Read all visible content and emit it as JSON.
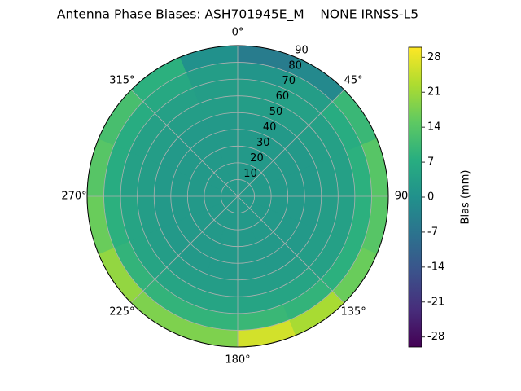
{
  "chart_data": {
    "type": "polar_heatmap",
    "title": "Antenna Phase Biases: ASH701945E_M    NONE IRNSS-L5",
    "colormap": "viridis",
    "colorbar_label": "Bias (mm)",
    "clim": [
      -30,
      30
    ],
    "cticks": [
      -28,
      -21,
      -14,
      -7,
      0,
      7,
      14,
      21,
      28
    ],
    "rlim": [
      0,
      90
    ],
    "rticks": [
      10,
      20,
      30,
      40,
      50,
      60,
      70,
      80,
      90
    ],
    "theta_ticks": [
      {
        "value": 0,
        "label": "0°"
      },
      {
        "value": 45,
        "label": "45°"
      },
      {
        "value": 90,
        "label": "90"
      },
      {
        "value": 135,
        "label": "135°"
      },
      {
        "value": 180,
        "label": "180°"
      },
      {
        "value": 225,
        "label": "225°"
      },
      {
        "value": 270,
        "label": "270°"
      },
      {
        "value": 315,
        "label": "315°"
      }
    ],
    "grid": true,
    "zenith_edges": [
      0,
      10,
      20,
      30,
      40,
      50,
      60,
      70,
      80,
      90
    ],
    "azimuth_edges": [
      0,
      22.5,
      45,
      67.5,
      90,
      112.5,
      135,
      157.5,
      180,
      202.5,
      225,
      247.5,
      270,
      292.5,
      315,
      337.5,
      360
    ],
    "values": [
      [
        2,
        2,
        2,
        2,
        2,
        2,
        2,
        2,
        2,
        2,
        2,
        2,
        2,
        2,
        2,
        2
      ],
      [
        2,
        2,
        2,
        2,
        2,
        2,
        2,
        2,
        2,
        2,
        2,
        2,
        2,
        2,
        2,
        2
      ],
      [
        2,
        2,
        2,
        2,
        2,
        2,
        2,
        2,
        2,
        2,
        2,
        2,
        2,
        2,
        2,
        2
      ],
      [
        2,
        2,
        2,
        2,
        2,
        2,
        2,
        2,
        2,
        2,
        2,
        2,
        2,
        2,
        2,
        2
      ],
      [
        2,
        2,
        2,
        2,
        2,
        2,
        2,
        2,
        2,
        2,
        2,
        2,
        2,
        2,
        2,
        2
      ],
      [
        3,
        3,
        3,
        3,
        3,
        3,
        3,
        3,
        3,
        3,
        3,
        3,
        3,
        3,
        3,
        3
      ],
      [
        3,
        4,
        4,
        4,
        4,
        4,
        5,
        5,
        5,
        5,
        5,
        5,
        4,
        4,
        4,
        3
      ],
      [
        1,
        3,
        7,
        8,
        8,
        8,
        9,
        10,
        9,
        9,
        9,
        8,
        7,
        7,
        6,
        3
      ],
      [
        -5,
        -2,
        10,
        14,
        14,
        16,
        22,
        26,
        18,
        18,
        20,
        16,
        14,
        12,
        8,
        0
      ]
    ]
  }
}
